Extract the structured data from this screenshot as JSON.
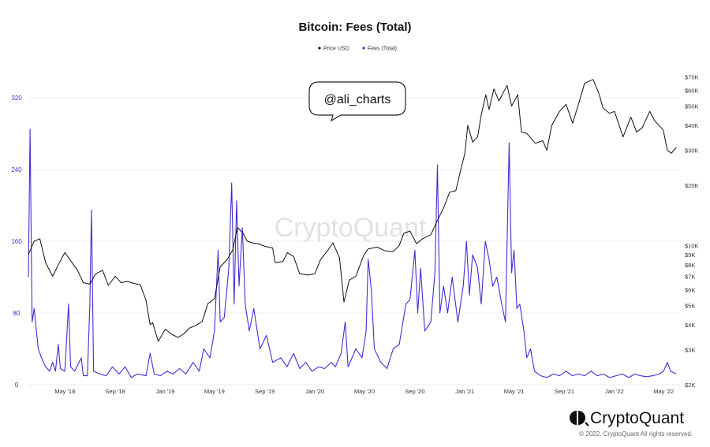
{
  "chart_data": {
    "type": "line",
    "title": "Bitcoin: Fees (Total)",
    "x_ticks": [
      "May '18",
      "Sep '18",
      "Jan '19",
      "May '19",
      "Sep '19",
      "Jan '20",
      "May '20",
      "Sep '20",
      "Jan '21",
      "May '21",
      "Sep '21",
      "Jan '22",
      "May '22"
    ],
    "y_left": {
      "ticks": [
        "0",
        "80",
        "160",
        "240",
        "320"
      ],
      "range": [
        0,
        350
      ],
      "color": "#3f2fd8"
    },
    "y_right": {
      "scale": "log",
      "ticks": [
        "$2K",
        "$3K",
        "$4K",
        "$5K",
        "$6K",
        "$7K",
        "$8K",
        "$9K",
        "$10K",
        "$20K",
        "$30K",
        "$40K",
        "$50K",
        "$60K",
        "$70K"
      ],
      "range": [
        2000,
        75000
      ]
    },
    "legend": {
      "position": "top-center"
    },
    "grid": "horizontal",
    "series": [
      {
        "name": "Price USD",
        "axis": "right",
        "color": "#111111",
        "points": [
          [
            "2018-02-01",
            9000
          ],
          [
            "2018-02-15",
            10500
          ],
          [
            "2018-03-01",
            10800
          ],
          [
            "2018-03-15",
            8200
          ],
          [
            "2018-04-01",
            7000
          ],
          [
            "2018-04-15",
            8000
          ],
          [
            "2018-05-01",
            9200
          ],
          [
            "2018-05-15",
            8400
          ],
          [
            "2018-06-01",
            7500
          ],
          [
            "2018-06-15",
            6500
          ],
          [
            "2018-07-01",
            6400
          ],
          [
            "2018-07-15",
            7200
          ],
          [
            "2018-08-01",
            7500
          ],
          [
            "2018-08-15",
            6300
          ],
          [
            "2018-09-01",
            7000
          ],
          [
            "2018-09-15",
            6500
          ],
          [
            "2018-10-01",
            6600
          ],
          [
            "2018-10-15",
            6450
          ],
          [
            "2018-11-01",
            6350
          ],
          [
            "2018-11-15",
            5300
          ],
          [
            "2018-11-25",
            4000
          ],
          [
            "2018-12-01",
            4100
          ],
          [
            "2018-12-15",
            3300
          ],
          [
            "2019-01-01",
            3800
          ],
          [
            "2019-01-15",
            3600
          ],
          [
            "2019-02-01",
            3450
          ],
          [
            "2019-02-15",
            3600
          ],
          [
            "2019-03-01",
            3850
          ],
          [
            "2019-03-15",
            3950
          ],
          [
            "2019-04-01",
            4150
          ],
          [
            "2019-04-15",
            5100
          ],
          [
            "2019-05-01",
            5400
          ],
          [
            "2019-05-15",
            7800
          ],
          [
            "2019-06-01",
            8500
          ],
          [
            "2019-06-15",
            9500
          ],
          [
            "2019-06-26",
            12300
          ],
          [
            "2019-07-10",
            11500
          ],
          [
            "2019-07-20",
            10500
          ],
          [
            "2019-08-01",
            10300
          ],
          [
            "2019-08-15",
            10200
          ],
          [
            "2019-09-01",
            9900
          ],
          [
            "2019-09-20",
            9700
          ],
          [
            "2019-09-26",
            8200
          ],
          [
            "2019-10-15",
            8300
          ],
          [
            "2019-10-26",
            9200
          ],
          [
            "2019-11-10",
            8800
          ],
          [
            "2019-11-25",
            7200
          ],
          [
            "2019-12-15",
            7100
          ],
          [
            "2020-01-01",
            7200
          ],
          [
            "2020-01-15",
            8500
          ],
          [
            "2020-02-01",
            9400
          ],
          [
            "2020-02-14",
            10300
          ],
          [
            "2020-03-01",
            8700
          ],
          [
            "2020-03-12",
            5200
          ],
          [
            "2020-03-25",
            6700
          ],
          [
            "2020-04-10",
            7000
          ],
          [
            "2020-04-29",
            8900
          ],
          [
            "2020-05-10",
            9600
          ],
          [
            "2020-06-01",
            9800
          ],
          [
            "2020-06-20",
            9400
          ],
          [
            "2020-07-10",
            9300
          ],
          [
            "2020-07-25",
            10000
          ],
          [
            "2020-08-05",
            11500
          ],
          [
            "2020-08-20",
            11800
          ],
          [
            "2020-09-05",
            10200
          ],
          [
            "2020-09-20",
            10800
          ],
          [
            "2020-10-10",
            11300
          ],
          [
            "2020-10-25",
            13200
          ],
          [
            "2020-11-10",
            15400
          ],
          [
            "2020-11-25",
            18500
          ],
          [
            "2020-12-10",
            18800
          ],
          [
            "2020-12-20",
            23000
          ],
          [
            "2021-01-01",
            29000
          ],
          [
            "2021-01-08",
            40000
          ],
          [
            "2021-01-20",
            33000
          ],
          [
            "2021-02-01",
            35000
          ],
          [
            "2021-02-10",
            45000
          ],
          [
            "2021-02-21",
            57000
          ],
          [
            "2021-03-01",
            48000
          ],
          [
            "2021-03-13",
            61000
          ],
          [
            "2021-03-25",
            53000
          ],
          [
            "2021-04-14",
            63500
          ],
          [
            "2021-04-25",
            50000
          ],
          [
            "2021-05-10",
            57000
          ],
          [
            "2021-05-19",
            37000
          ],
          [
            "2021-06-01",
            36500
          ],
          [
            "2021-06-22",
            32500
          ],
          [
            "2021-07-10",
            33500
          ],
          [
            "2021-07-20",
            30000
          ],
          [
            "2021-08-01",
            40000
          ],
          [
            "2021-08-20",
            47000
          ],
          [
            "2021-09-05",
            51000
          ],
          [
            "2021-09-21",
            41000
          ],
          [
            "2021-10-05",
            51000
          ],
          [
            "2021-10-20",
            65000
          ],
          [
            "2021-11-10",
            68000
          ],
          [
            "2021-11-25",
            57000
          ],
          [
            "2021-12-04",
            49000
          ],
          [
            "2021-12-20",
            46000
          ],
          [
            "2022-01-01",
            47000
          ],
          [
            "2022-01-22",
            35000
          ],
          [
            "2022-02-10",
            44000
          ],
          [
            "2022-02-24",
            37000
          ],
          [
            "2022-03-10",
            39000
          ],
          [
            "2022-03-28",
            47000
          ],
          [
            "2022-04-10",
            42000
          ],
          [
            "2022-04-30",
            38000
          ],
          [
            "2022-05-10",
            30000
          ],
          [
            "2022-05-20",
            29000
          ],
          [
            "2022-06-01",
            31000
          ]
        ]
      },
      {
        "name": "Fees (Total)",
        "axis": "left",
        "color": "#3f2fd8",
        "points": [
          [
            "2018-02-01",
            120
          ],
          [
            "2018-02-05",
            285
          ],
          [
            "2018-02-10",
            70
          ],
          [
            "2018-02-15",
            85
          ],
          [
            "2018-02-25",
            40
          ],
          [
            "2018-03-05",
            30
          ],
          [
            "2018-03-15",
            20
          ],
          [
            "2018-03-25",
            15
          ],
          [
            "2018-04-01",
            25
          ],
          [
            "2018-04-08",
            15
          ],
          [
            "2018-04-15",
            45
          ],
          [
            "2018-04-20",
            18
          ],
          [
            "2018-05-01",
            15
          ],
          [
            "2018-05-10",
            90
          ],
          [
            "2018-05-15",
            20
          ],
          [
            "2018-05-25",
            15
          ],
          [
            "2018-06-10",
            30
          ],
          [
            "2018-06-15",
            10
          ],
          [
            "2018-06-25",
            10
          ],
          [
            "2018-07-01",
            90
          ],
          [
            "2018-07-05",
            195
          ],
          [
            "2018-07-10",
            15
          ],
          [
            "2018-07-25",
            12
          ],
          [
            "2018-08-10",
            10
          ],
          [
            "2018-08-25",
            20
          ],
          [
            "2018-09-10",
            12
          ],
          [
            "2018-09-25",
            20
          ],
          [
            "2018-10-10",
            8
          ],
          [
            "2018-10-25",
            12
          ],
          [
            "2018-11-15",
            10
          ],
          [
            "2018-11-25",
            35
          ],
          [
            "2018-12-05",
            12
          ],
          [
            "2018-12-20",
            10
          ],
          [
            "2019-01-05",
            15
          ],
          [
            "2019-01-20",
            12
          ],
          [
            "2019-02-05",
            18
          ],
          [
            "2019-02-20",
            12
          ],
          [
            "2019-03-10",
            25
          ],
          [
            "2019-03-25",
            15
          ],
          [
            "2019-04-05",
            40
          ],
          [
            "2019-04-20",
            30
          ],
          [
            "2019-05-01",
            60
          ],
          [
            "2019-05-10",
            150
          ],
          [
            "2019-05-15",
            70
          ],
          [
            "2019-05-25",
            75
          ],
          [
            "2019-06-05",
            130
          ],
          [
            "2019-06-12",
            225
          ],
          [
            "2019-06-18",
            90
          ],
          [
            "2019-06-24",
            205
          ],
          [
            "2019-06-30",
            110
          ],
          [
            "2019-07-08",
            175
          ],
          [
            "2019-07-15",
            90
          ],
          [
            "2019-07-25",
            60
          ],
          [
            "2019-08-05",
            85
          ],
          [
            "2019-08-20",
            40
          ],
          [
            "2019-09-05",
            55
          ],
          [
            "2019-09-20",
            25
          ],
          [
            "2019-10-10",
            30
          ],
          [
            "2019-10-25",
            20
          ],
          [
            "2019-11-10",
            35
          ],
          [
            "2019-11-25",
            18
          ],
          [
            "2019-12-10",
            25
          ],
          [
            "2019-12-25",
            15
          ],
          [
            "2020-01-10",
            20
          ],
          [
            "2020-01-25",
            18
          ],
          [
            "2020-02-10",
            25
          ],
          [
            "2020-02-20",
            20
          ],
          [
            "2020-03-05",
            35
          ],
          [
            "2020-03-15",
            70
          ],
          [
            "2020-03-22",
            20
          ],
          [
            "2020-04-10",
            40
          ],
          [
            "2020-04-25",
            30
          ],
          [
            "2020-05-05",
            60
          ],
          [
            "2020-05-10",
            140
          ],
          [
            "2020-05-18",
            105
          ],
          [
            "2020-05-25",
            40
          ],
          [
            "2020-06-10",
            25
          ],
          [
            "2020-06-25",
            18
          ],
          [
            "2020-07-10",
            40
          ],
          [
            "2020-07-25",
            45
          ],
          [
            "2020-08-10",
            90
          ],
          [
            "2020-08-20",
            95
          ],
          [
            "2020-09-01",
            150
          ],
          [
            "2020-09-08",
            80
          ],
          [
            "2020-09-15",
            130
          ],
          [
            "2020-09-25",
            60
          ],
          [
            "2020-10-10",
            70
          ],
          [
            "2020-10-20",
            125
          ],
          [
            "2020-10-26",
            245
          ],
          [
            "2020-11-01",
            80
          ],
          [
            "2020-11-10",
            110
          ],
          [
            "2020-11-20",
            80
          ],
          [
            "2020-12-01",
            120
          ],
          [
            "2020-12-15",
            70
          ],
          [
            "2020-12-28",
            110
          ],
          [
            "2021-01-05",
            160
          ],
          [
            "2021-01-12",
            100
          ],
          [
            "2021-01-20",
            145
          ],
          [
            "2021-02-01",
            130
          ],
          [
            "2021-02-10",
            90
          ],
          [
            "2021-02-20",
            160
          ],
          [
            "2021-03-01",
            140
          ],
          [
            "2021-03-10",
            110
          ],
          [
            "2021-03-20",
            120
          ],
          [
            "2021-04-01",
            90
          ],
          [
            "2021-04-10",
            70
          ],
          [
            "2021-04-19",
            270
          ],
          [
            "2021-04-25",
            125
          ],
          [
            "2021-05-01",
            150
          ],
          [
            "2021-05-08",
            85
          ],
          [
            "2021-05-15",
            90
          ],
          [
            "2021-05-25",
            60
          ],
          [
            "2021-06-01",
            30
          ],
          [
            "2021-06-10",
            40
          ],
          [
            "2021-06-20",
            15
          ],
          [
            "2021-07-05",
            10
          ],
          [
            "2021-07-20",
            8
          ],
          [
            "2021-08-05",
            12
          ],
          [
            "2021-08-20",
            10
          ],
          [
            "2021-09-05",
            15
          ],
          [
            "2021-09-20",
            10
          ],
          [
            "2021-10-05",
            12
          ],
          [
            "2021-10-20",
            10
          ],
          [
            "2021-11-05",
            15
          ],
          [
            "2021-11-20",
            10
          ],
          [
            "2021-12-05",
            12
          ],
          [
            "2021-12-20",
            8
          ],
          [
            "2022-01-05",
            10
          ],
          [
            "2022-01-20",
            12
          ],
          [
            "2022-02-05",
            8
          ],
          [
            "2022-02-20",
            12
          ],
          [
            "2022-03-05",
            10
          ],
          [
            "2022-03-20",
            9
          ],
          [
            "2022-04-05",
            10
          ],
          [
            "2022-04-20",
            12
          ],
          [
            "2022-05-01",
            15
          ],
          [
            "2022-05-10",
            25
          ],
          [
            "2022-05-18",
            15
          ],
          [
            "2022-06-01",
            12
          ]
        ]
      }
    ]
  },
  "annotation": {
    "text": "@ali_charts"
  },
  "watermark": {
    "text": "CryptoQuant"
  },
  "brand": {
    "name": "CryptoQuant",
    "copyright": "© 2022. CryptoQuant All rights reserved."
  }
}
